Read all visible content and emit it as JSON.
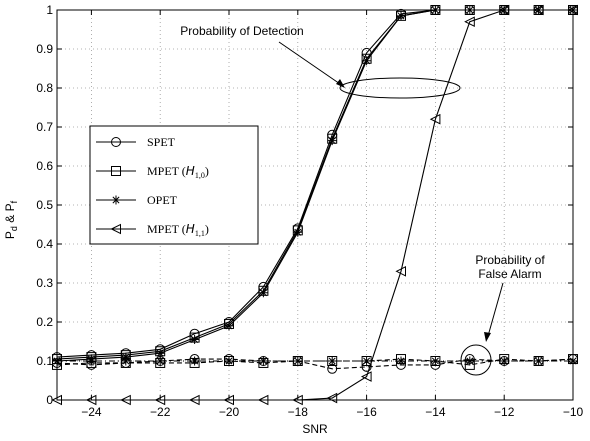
{
  "chart_data": {
    "type": "line",
    "xlabel": "SNR",
    "ylabel": "P_d  &  P_f",
    "xlim": [
      -25,
      -10
    ],
    "ylim": [
      0,
      1
    ],
    "xticks": [
      -24,
      -22,
      -20,
      -18,
      -16,
      -14,
      -12,
      -10
    ],
    "yticks": [
      0,
      0.1,
      0.2,
      0.3,
      0.4,
      0.5,
      0.6,
      0.7,
      0.8,
      0.9,
      1
    ],
    "grid": true,
    "legend_position": "middle-left",
    "annotations": [
      {
        "text": "Probability of Detection"
      },
      {
        "text": "Probability of\nFalse Alarm"
      }
    ],
    "x": [
      -25,
      -24,
      -23,
      -22,
      -21,
      -20,
      -19,
      -18,
      -17,
      -16,
      -15,
      -14,
      -13,
      -12,
      -11,
      -10
    ],
    "series": [
      {
        "name": "SPET",
        "marker": "circle",
        "curve": "detection",
        "values": [
          0.11,
          0.115,
          0.12,
          0.13,
          0.17,
          0.2,
          0.29,
          0.44,
          0.68,
          0.89,
          0.99,
          1,
          1,
          1,
          1,
          1
        ]
      },
      {
        "name": "MPET (H_{1,0})",
        "marker": "square",
        "curve": "detection",
        "values": [
          0.105,
          0.11,
          0.115,
          0.125,
          0.16,
          0.195,
          0.28,
          0.435,
          0.67,
          0.875,
          0.985,
          1,
          1,
          1,
          1,
          1
        ]
      },
      {
        "name": "OPET",
        "marker": "star",
        "curve": "detection",
        "values": [
          0.1,
          0.105,
          0.11,
          0.12,
          0.155,
          0.19,
          0.275,
          0.43,
          0.665,
          0.87,
          0.985,
          1,
          1,
          1,
          1,
          1
        ]
      },
      {
        "name": "MPET (H_{1,1})",
        "marker": "triangle-left",
        "curve": "detection",
        "values": [
          0,
          0,
          0,
          0,
          0,
          0,
          0,
          0,
          0.005,
          0.06,
          0.33,
          0.72,
          0.97,
          1,
          1,
          1
        ]
      },
      {
        "name": "SPET",
        "marker": "circle",
        "curve": "false-alarm",
        "values": [
          0.095,
          0.09,
          0.095,
          0.1,
          0.105,
          0.105,
          0.1,
          0.1,
          0.08,
          0.085,
          0.09,
          0.09,
          0.105,
          0.1,
          0.1,
          0.105
        ]
      },
      {
        "name": "MPET (H_{1,0})",
        "marker": "square",
        "curve": "false-alarm",
        "values": [
          0.09,
          0.095,
          0.095,
          0.095,
          0.095,
          0.1,
          0.095,
          0.1,
          0.1,
          0.1,
          0.105,
          0.1,
          0.09,
          0.105,
          0.1,
          0.105
        ]
      },
      {
        "name": "OPET",
        "marker": "star",
        "curve": "false-alarm",
        "values": [
          0.1,
          0.1,
          0.1,
          0.1,
          0.1,
          0.1,
          0.1,
          0.1,
          0.1,
          0.1,
          0.1,
          0.1,
          0.1,
          0.1,
          0.1,
          0.1
        ]
      }
    ]
  }
}
